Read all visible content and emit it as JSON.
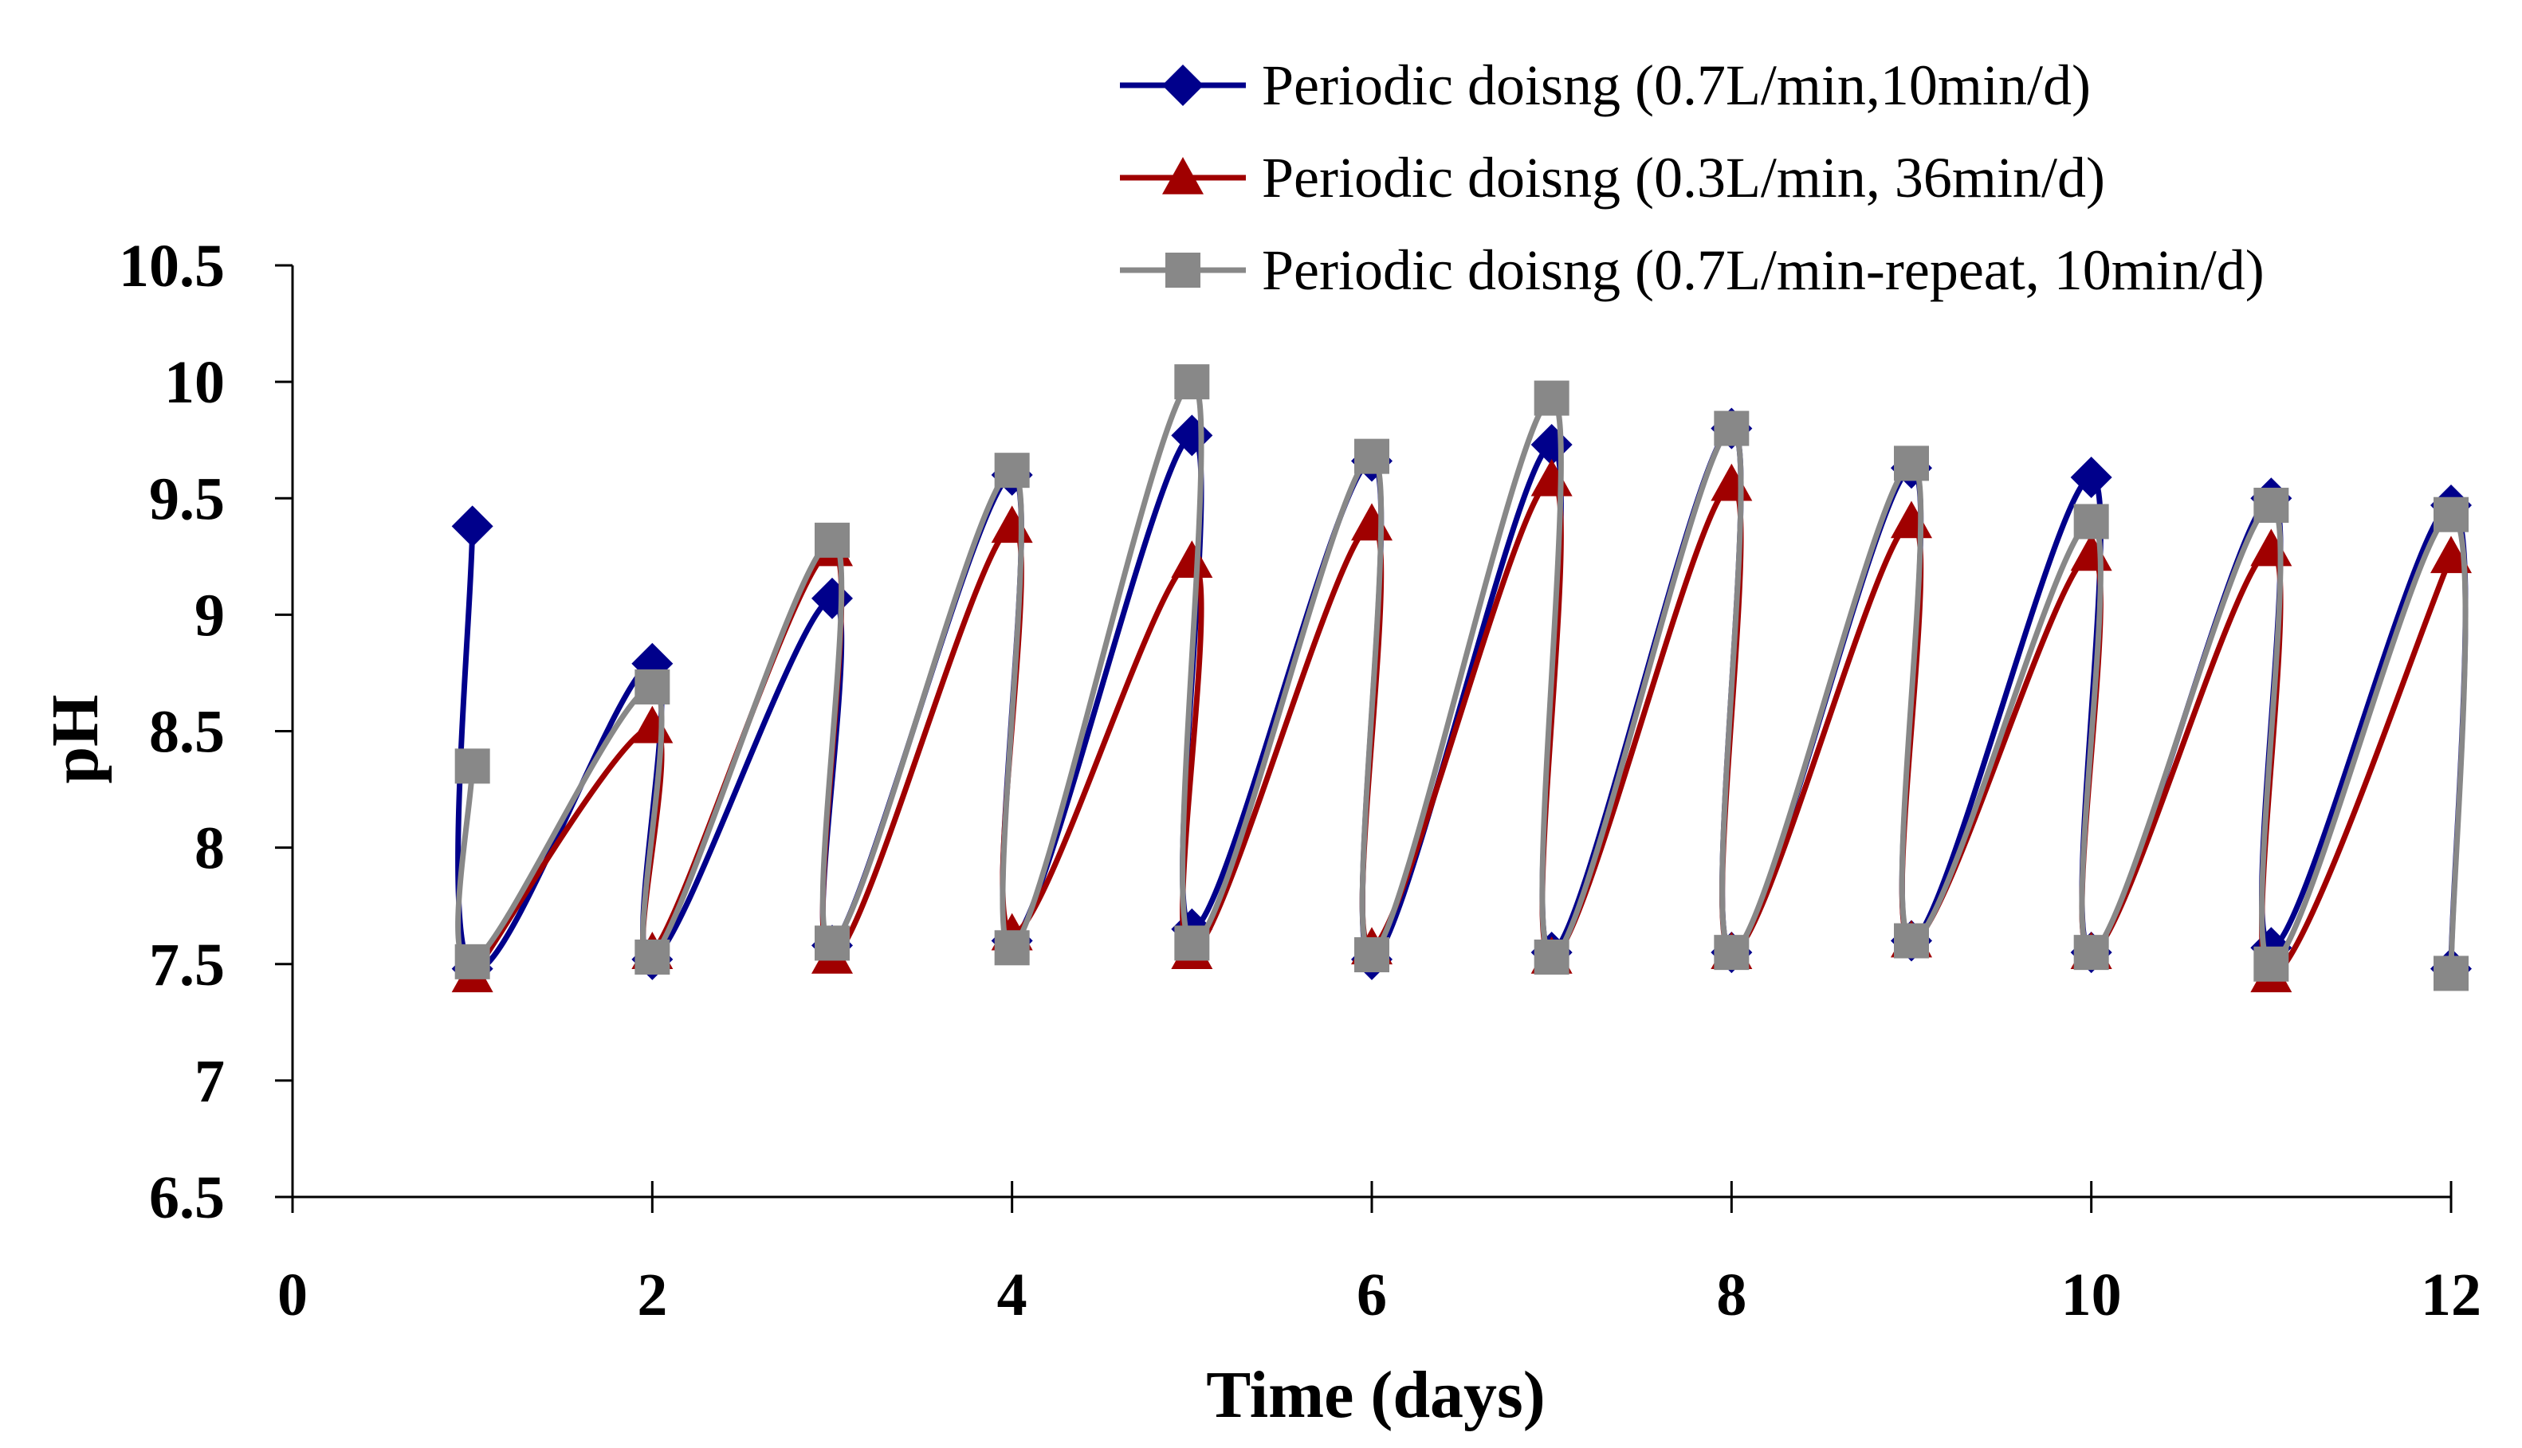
{
  "chart_data": {
    "type": "line",
    "title": "",
    "xlabel": "Time (days)",
    "ylabel": "pH",
    "xlim": [
      0,
      12
    ],
    "ylim": [
      6.5,
      10.5
    ],
    "xticks": [
      "0",
      "2",
      "4",
      "6",
      "8",
      "10",
      "12"
    ],
    "yticks": [
      "6.5",
      "7",
      "7.5",
      "8",
      "8.5",
      "9",
      "9.5",
      "10",
      "10.5"
    ],
    "grid": false,
    "legend_position": "top-right",
    "series": [
      {
        "name": "Periodic doisng (0.7L/min,10min/d)",
        "color": "#00008B",
        "marker": "diamond",
        "x": [
          1,
          1,
          2,
          2,
          3,
          3,
          4,
          4,
          5,
          5,
          6,
          6,
          7,
          7,
          8,
          8,
          9,
          9,
          10,
          10,
          11,
          11,
          12,
          12
        ],
        "y": [
          9.38,
          7.48,
          8.79,
          7.52,
          9.07,
          7.58,
          9.6,
          7.6,
          9.77,
          7.65,
          9.66,
          7.52,
          9.73,
          7.55,
          9.8,
          7.55,
          9.63,
          7.6,
          9.59,
          7.55,
          9.5,
          7.57,
          9.47,
          7.48
        ]
      },
      {
        "name": "Periodic doisng (0.3L/min, 36min/d)",
        "color": "#A00000",
        "marker": "triangle",
        "x": [
          1,
          2,
          2,
          3,
          3,
          4,
          4,
          5,
          5,
          6,
          6,
          7,
          7,
          8,
          8,
          9,
          9,
          10,
          10,
          11,
          11,
          12
        ],
        "y": [
          7.45,
          8.52,
          7.55,
          9.28,
          7.53,
          9.38,
          7.63,
          9.23,
          7.55,
          9.39,
          7.57,
          9.58,
          7.53,
          9.56,
          7.55,
          9.4,
          7.6,
          9.26,
          7.55,
          9.28,
          7.45,
          9.25
        ]
      },
      {
        "name": "Periodic doisng (0.7L/min-repeat, 10min/d)",
        "color": "#888888",
        "marker": "square",
        "x": [
          1,
          1,
          2,
          2,
          3,
          3,
          4,
          4,
          5,
          5,
          6,
          6,
          7,
          7,
          8,
          8,
          9,
          9,
          10,
          10,
          11,
          11,
          12,
          12
        ],
        "y": [
          8.35,
          7.51,
          8.69,
          7.53,
          9.32,
          7.59,
          9.62,
          7.57,
          10.0,
          7.59,
          9.68,
          7.54,
          9.93,
          7.53,
          9.8,
          7.55,
          9.65,
          7.6,
          9.4,
          7.55,
          9.47,
          7.5,
          9.43,
          7.46
        ]
      }
    ]
  }
}
